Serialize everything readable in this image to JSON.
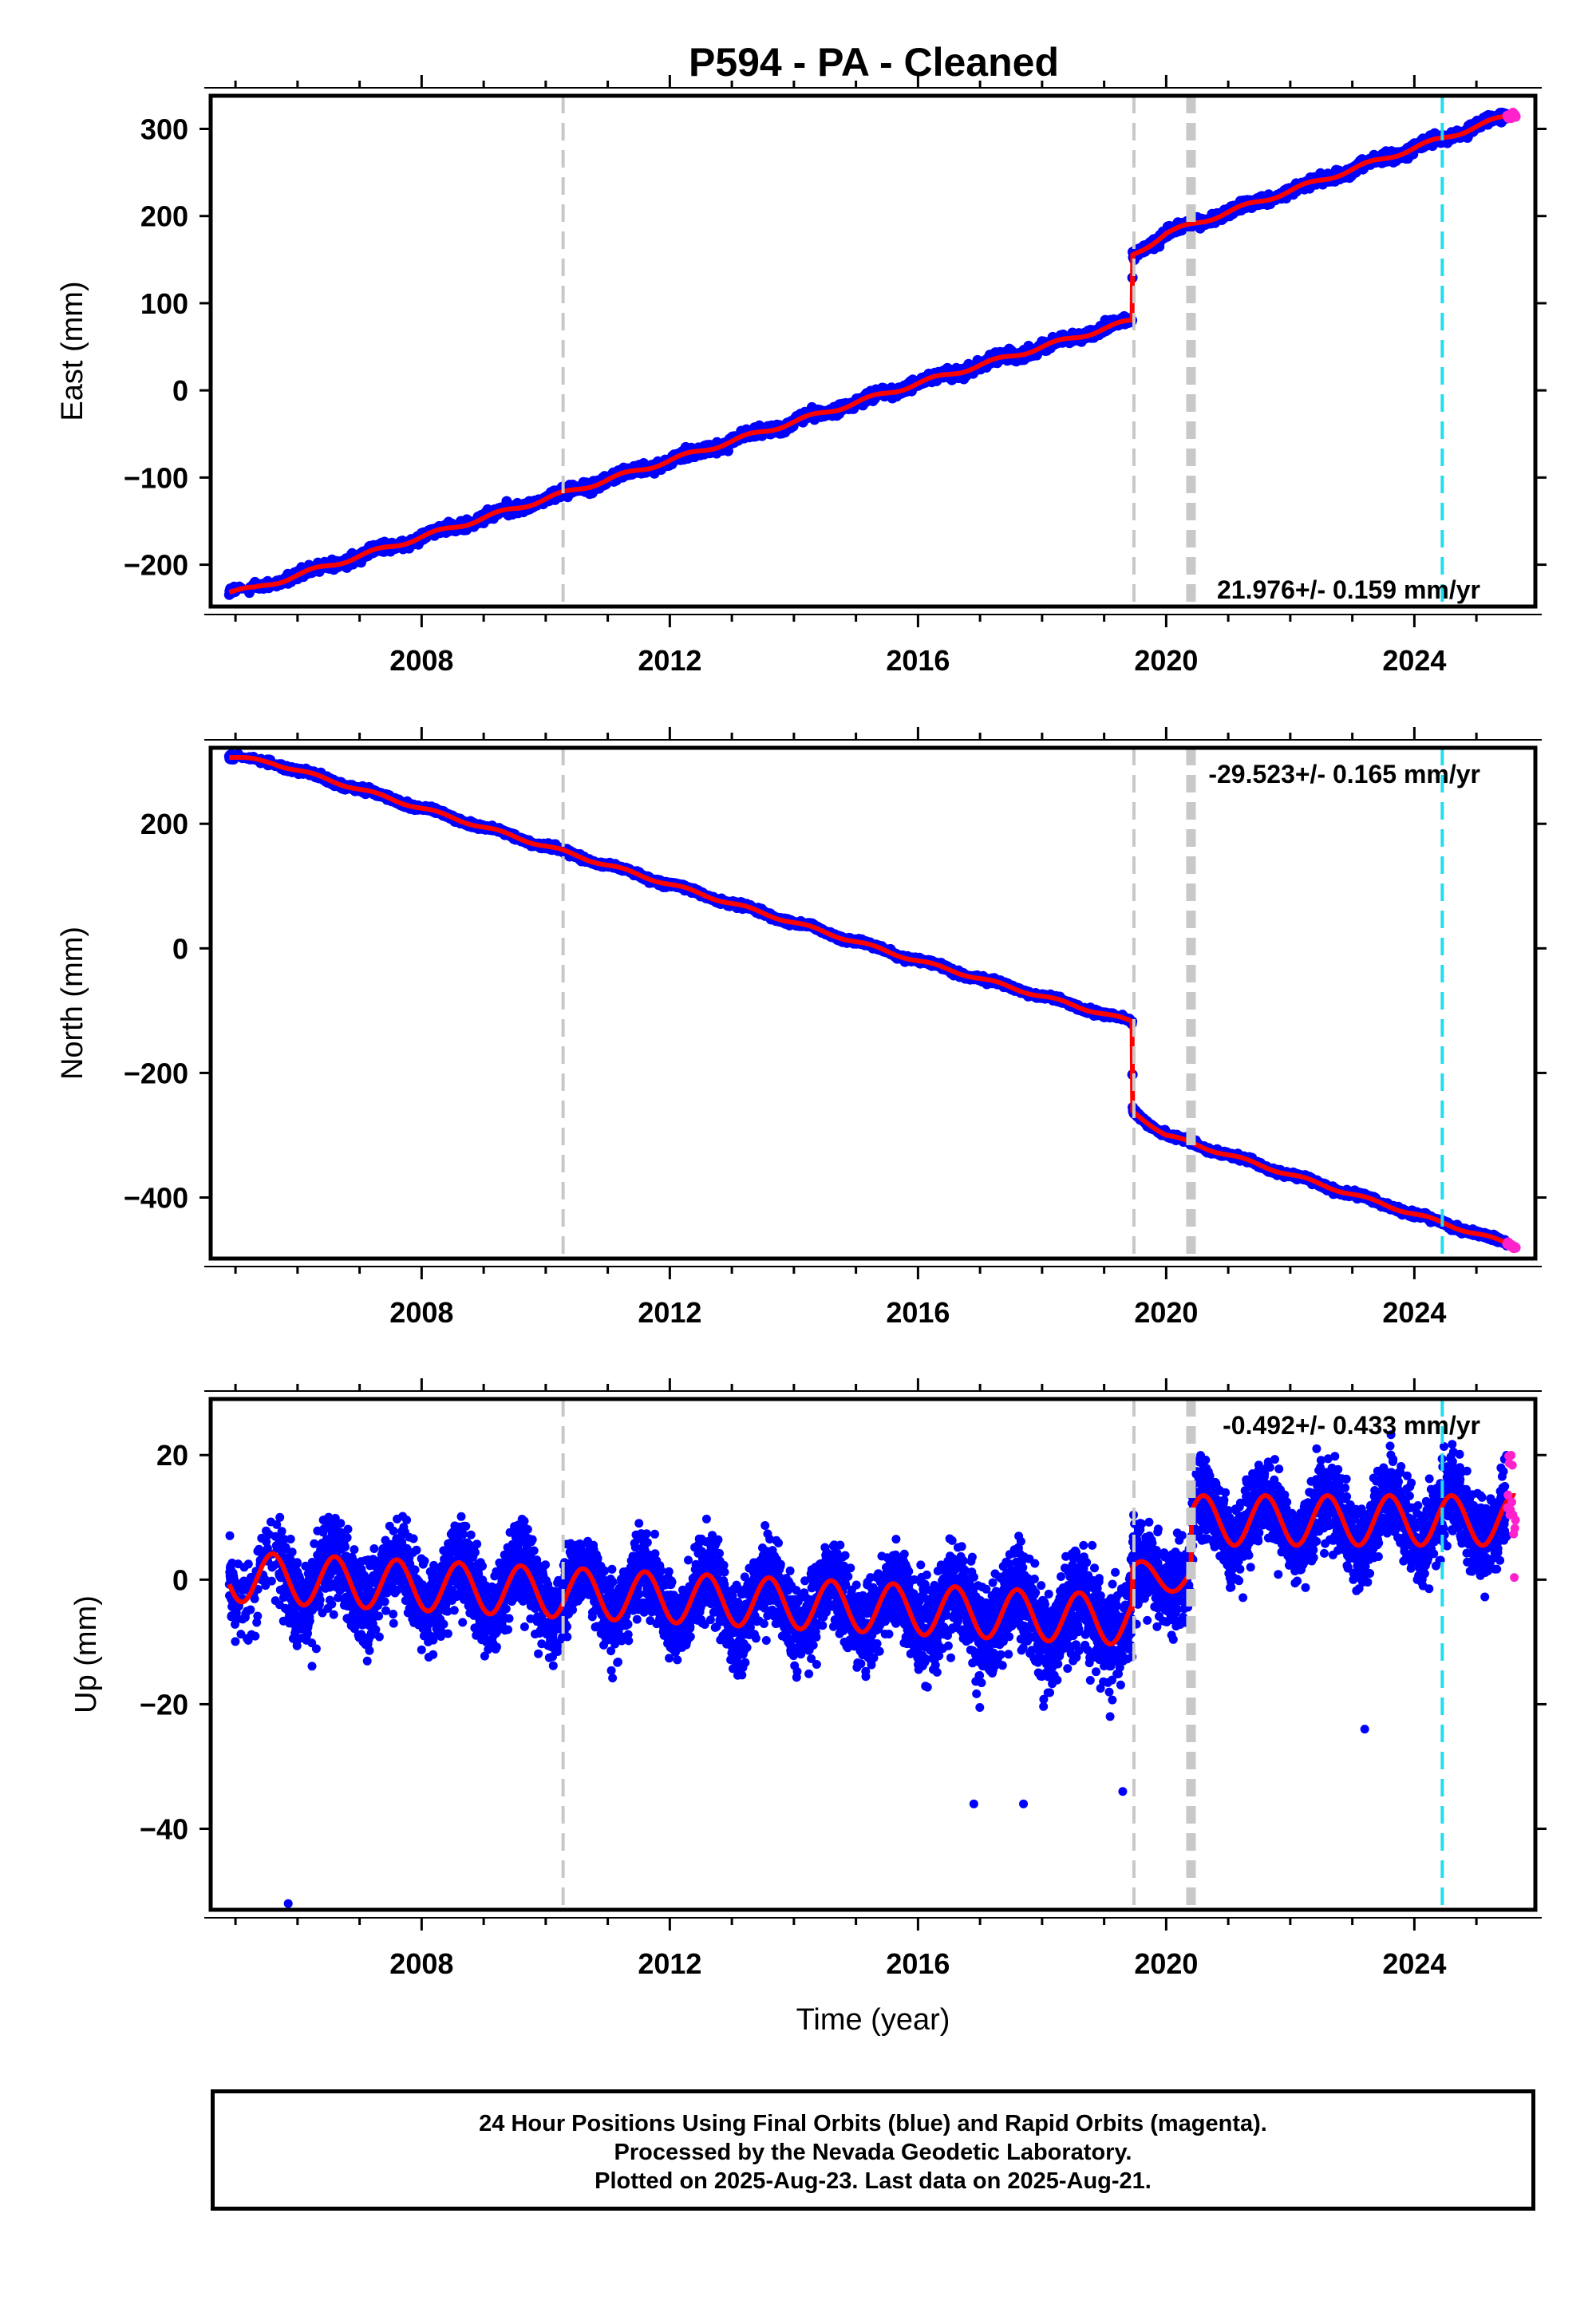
{
  "title": "P594  - PA - Cleaned",
  "footer": {
    "line1": "24 Hour Positions Using Final Orbits (blue) and Rapid Orbits (magenta).",
    "line2": "Processed by the Nevada Geodetic Laboratory.",
    "line3": "Plotted on 2025-Aug-23. Last data on 2025-Aug-21."
  },
  "colors": {
    "final_orbits": "#0000ff",
    "rapid_orbits": "#ff22cc",
    "model": "#ff0000",
    "equipment_change": "#c8c8c8",
    "earthquake": "#22ddee"
  },
  "chart_data": [
    {
      "type": "scatter",
      "name": "east",
      "ylabel": "East (mm)",
      "xlabel": "",
      "xlim": [
        2004.6,
        2025.95
      ],
      "ylim": [
        -248,
        338
      ],
      "xticks": [
        2008,
        2012,
        2016,
        2020,
        2024
      ],
      "yticks": [
        -200,
        -100,
        0,
        100,
        200,
        300
      ],
      "xtick_labels": [
        "2008",
        "2012",
        "2016",
        "2020",
        "2024"
      ],
      "ytick_labels": [
        "−200",
        "−100",
        "0",
        "100",
        "200",
        "300"
      ],
      "annotation": "21.976+/- 0.159 mm/yr",
      "annotation_position": "bottom-right",
      "velocity": 21.976,
      "velocity_uncertainty": 0.159,
      "data_start": 2004.9,
      "data_end": 2025.63,
      "model_keypoints": [
        [
          2004.9,
          -230
        ],
        [
          2005.3,
          -228
        ],
        [
          2006.0,
          -212
        ],
        [
          2010.3,
          -118
        ],
        [
          2016.0,
          8
        ],
        [
          2019.45,
          80
        ],
        [
          2019.46,
          155
        ],
        [
          2020.0,
          180
        ],
        [
          2025.63,
          318
        ]
      ],
      "scatter_noise_mm": 4,
      "rapid_tail_start": 2025.5,
      "equipment_changes": [
        2010.28,
        2019.48,
        2020.4
      ],
      "earthquakes": [
        2024.45
      ]
    },
    {
      "type": "scatter",
      "name": "north",
      "ylabel": "North (mm)",
      "xlabel": "",
      "xlim": [
        2004.6,
        2025.95
      ],
      "ylim": [
        -498,
        322
      ],
      "xticks": [
        2008,
        2012,
        2016,
        2020,
        2024
      ],
      "yticks": [
        -400,
        -200,
        0,
        200
      ],
      "xtick_labels": [
        "2008",
        "2012",
        "2016",
        "2020",
        "2024"
      ],
      "ytick_labels": [
        "−400",
        "−200",
        "0",
        "200"
      ],
      "annotation": "-29.523+/- 0.165 mm/yr",
      "annotation_position": "top-right",
      "velocity": -29.523,
      "velocity_uncertainty": 0.165,
      "data_start": 2004.9,
      "data_end": 2025.63,
      "model_keypoints": [
        [
          2004.9,
          308
        ],
        [
          2005.6,
          298
        ],
        [
          2010.3,
          155
        ],
        [
          2016.0,
          -20
        ],
        [
          2019.45,
          -118
        ],
        [
          2019.46,
          -262
        ],
        [
          2020.0,
          -300
        ],
        [
          2025.63,
          -478
        ]
      ],
      "scatter_noise_mm": 3,
      "rapid_tail_start": 2025.5,
      "equipment_changes": [
        2010.28,
        2019.48,
        2020.4
      ],
      "earthquakes": [
        2024.45
      ]
    },
    {
      "type": "scatter",
      "name": "up",
      "ylabel": "Up (mm)",
      "xlabel": "Time (year)",
      "xlim": [
        2004.6,
        2025.95
      ],
      "ylim": [
        -53,
        29
      ],
      "xticks": [
        2008,
        2012,
        2016,
        2020,
        2024
      ],
      "yticks": [
        -40,
        -20,
        0,
        20
      ],
      "xtick_labels": [
        "2008",
        "2012",
        "2016",
        "2020",
        "2024"
      ],
      "ytick_labels": [
        "−40",
        "−20",
        "0",
        "20"
      ],
      "annotation": "-0.492+/- 0.433 mm/yr",
      "annotation_position": "top-right",
      "velocity": -0.492,
      "velocity_uncertainty": 0.433,
      "data_start": 2004.9,
      "data_end": 2025.63,
      "model_trend_points": [
        [
          2004.9,
          0.5
        ],
        [
          2019.45,
          -6.5
        ],
        [
          2019.46,
          0.5
        ],
        [
          2020.4,
          0.5
        ],
        [
          2020.41,
          9.5
        ],
        [
          2025.63,
          9.5
        ]
      ],
      "seasonal_amplitude_mm": 4,
      "scatter_noise_mm": 4.5,
      "outliers": [
        [
          2005.85,
          -52
        ],
        [
          2023.2,
          -24
        ],
        [
          2017.7,
          -36
        ],
        [
          2016.9,
          -36
        ],
        [
          2019.3,
          -34
        ]
      ],
      "rapid_tail_start": 2025.5,
      "equipment_changes": [
        2010.28,
        2019.48,
        2020.4
      ],
      "earthquakes": [
        2024.45
      ]
    }
  ]
}
